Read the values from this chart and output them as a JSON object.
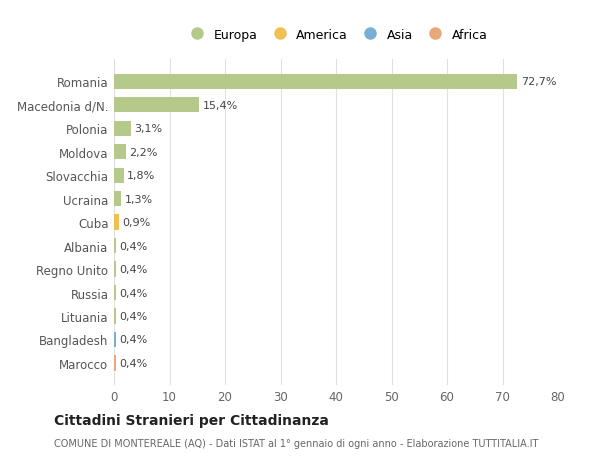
{
  "categories": [
    "Marocco",
    "Bangladesh",
    "Lituania",
    "Russia",
    "Regno Unito",
    "Albania",
    "Cuba",
    "Ucraina",
    "Slovacchia",
    "Moldova",
    "Polonia",
    "Macedonia d/N.",
    "Romania"
  ],
  "values": [
    0.4,
    0.4,
    0.4,
    0.4,
    0.4,
    0.4,
    0.9,
    1.3,
    1.8,
    2.2,
    3.1,
    15.4,
    72.7
  ],
  "labels": [
    "0,4%",
    "0,4%",
    "0,4%",
    "0,4%",
    "0,4%",
    "0,4%",
    "0,9%",
    "1,3%",
    "1,8%",
    "2,2%",
    "3,1%",
    "15,4%",
    "72,7%"
  ],
  "colors": [
    "#e8a87c",
    "#7aafd4",
    "#b5c98a",
    "#b5c98a",
    "#b5c98a",
    "#b5c98a",
    "#f0c050",
    "#b5c98a",
    "#b5c98a",
    "#b5c98a",
    "#b5c98a",
    "#b5c98a",
    "#b5c98a"
  ],
  "legend_labels": [
    "Europa",
    "America",
    "Asia",
    "Africa"
  ],
  "legend_colors": [
    "#b5c98a",
    "#f0c050",
    "#7aafd4",
    "#e8a87c"
  ],
  "title": "Cittadini Stranieri per Cittadinanza",
  "subtitle": "COMUNE DI MONTEREALE (AQ) - Dati ISTAT al 1° gennaio di ogni anno - Elaborazione TUTTITALIA.IT",
  "xlim": [
    0,
    80
  ],
  "xticks": [
    0,
    10,
    20,
    30,
    40,
    50,
    60,
    70,
    80
  ],
  "background_color": "#ffffff",
  "grid_color": "#e0e0e0",
  "bar_height": 0.65
}
